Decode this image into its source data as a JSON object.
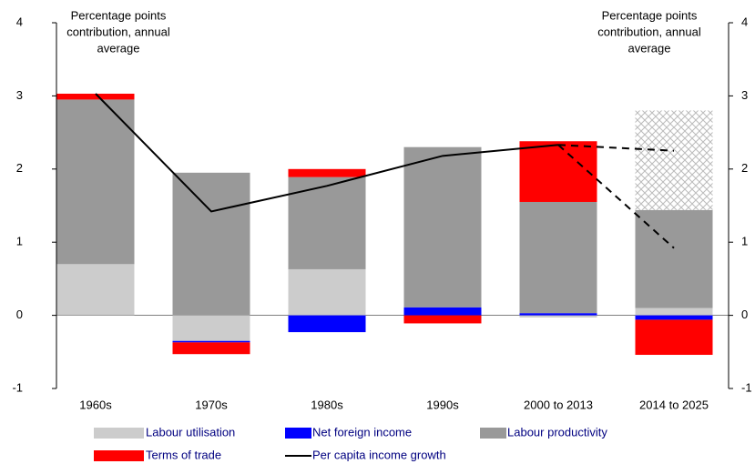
{
  "chart_data": {
    "type": "stacked_bar_line",
    "annotations": [
      {
        "lines": [
          "Percentage points",
          "contribution, annual",
          "average"
        ]
      },
      {
        "lines": [
          "Percentage points",
          "contribution, annual",
          "average"
        ]
      }
    ],
    "categories": [
      "1960s",
      "1970s",
      "1980s",
      "1990s",
      "2000 to 2013",
      "2014 to 2025"
    ],
    "series": [
      {
        "name": "Labour utilisation",
        "color": "#cccccc",
        "kind": "bar",
        "values": [
          0.7,
          -0.35,
          0.63,
          0,
          -0.03,
          0.1
        ]
      },
      {
        "name": "Net foreign income",
        "color": "#0000ff",
        "kind": "bar",
        "values": [
          0,
          -0.02,
          -0.23,
          0.11,
          0.03,
          -0.06
        ]
      },
      {
        "name": "Labour productivity",
        "color": "#999999",
        "kind": "bar",
        "values": [
          2.25,
          1.95,
          1.26,
          2.19,
          1.52,
          1.34
        ]
      },
      {
        "name": "Terms of trade",
        "color": "#ff0000",
        "kind": "bar",
        "values": [
          0.08,
          -0.16,
          0.11,
          -0.11,
          0.83,
          -0.48
        ]
      },
      {
        "color": "#cccccc",
        "kind": "bar",
        "pattern": "crosshatch",
        "values": [
          null,
          null,
          null,
          null,
          null,
          1.36
        ]
      },
      {
        "name": "Per capita income growth",
        "color": "#000000",
        "kind": "line",
        "dash": false,
        "values": [
          3.03,
          1.42,
          1.77,
          2.18,
          2.33,
          null
        ]
      },
      {
        "color": "#000000",
        "kind": "line",
        "dash": true,
        "values": [
          null,
          null,
          null,
          null,
          2.33,
          0.92
        ]
      },
      {
        "color": "#000000",
        "kind": "line",
        "dash": true,
        "values": [
          null,
          null,
          null,
          null,
          2.33,
          2.25
        ]
      }
    ],
    "ylim": [
      -1,
      4
    ],
    "yticks": [
      -1,
      0,
      1,
      2,
      3,
      4
    ],
    "y2lim": [
      -1,
      4
    ],
    "y2ticks": [
      -1,
      0,
      1,
      2,
      3,
      4
    ],
    "legend": "bottom"
  }
}
